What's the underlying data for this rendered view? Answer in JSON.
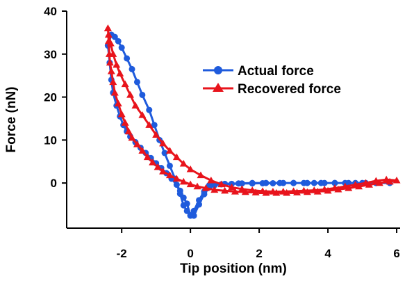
{
  "chart_data": {
    "type": "line",
    "title": "",
    "xlabel": "Tip position (nm)",
    "ylabel": "Force (nN)",
    "xlim": [
      -3.6,
      6.1
    ],
    "ylim": [
      -10.5,
      40
    ],
    "x_ticks": [
      -2,
      0,
      2,
      4,
      6
    ],
    "y_ticks": [
      0,
      10,
      20,
      30,
      40
    ],
    "x_tick_labels": [
      "-2",
      "0",
      "2",
      "4",
      "6"
    ],
    "y_tick_labels": [
      "0",
      "10",
      "20",
      "30",
      "40"
    ],
    "legend_position": "upper-right",
    "series": [
      {
        "name": "Actual force",
        "color": "#1f5bdc",
        "marker": "circle",
        "points": [
          [
            -2.4,
            32.0
          ],
          [
            -2.35,
            28.0
          ],
          [
            -2.3,
            24.0
          ],
          [
            -2.25,
            21.0
          ],
          [
            -2.15,
            18.0
          ],
          [
            -2.05,
            15.5
          ],
          [
            -1.95,
            13.5
          ],
          [
            -1.85,
            12.0
          ],
          [
            -1.75,
            10.8
          ],
          [
            -1.6,
            9.5
          ],
          [
            -1.45,
            8.2
          ],
          [
            -1.3,
            7.0
          ],
          [
            -1.15,
            5.8
          ],
          [
            -1.0,
            4.6
          ],
          [
            -0.85,
            3.5
          ],
          [
            -0.7,
            2.3
          ],
          [
            -0.55,
            1.0
          ],
          [
            -0.4,
            -0.4
          ],
          [
            -0.3,
            -1.8
          ],
          [
            -0.2,
            -3.4
          ],
          [
            -0.1,
            -4.8
          ],
          [
            0.0,
            -7.5
          ],
          [
            0.1,
            -7.6
          ],
          [
            0.25,
            -5.0
          ],
          [
            0.4,
            -2.6
          ],
          [
            0.55,
            -1.0
          ],
          [
            0.7,
            -0.5
          ],
          [
            0.9,
            -0.3
          ],
          [
            1.2,
            -0.2
          ],
          [
            1.5,
            -0.1
          ],
          [
            1.8,
            -0.1
          ],
          [
            2.1,
            -0.05
          ],
          [
            2.4,
            -0.05
          ],
          [
            2.7,
            0.0
          ],
          [
            3.0,
            0.0
          ],
          [
            3.3,
            0.0
          ],
          [
            3.6,
            0.0
          ],
          [
            3.9,
            0.0
          ],
          [
            4.2,
            0.0
          ],
          [
            4.5,
            0.0
          ],
          [
            4.8,
            0.0
          ],
          [
            5.1,
            0.0
          ],
          [
            5.4,
            0.0
          ],
          [
            5.8,
            0.0
          ],
          [
            5.4,
            0.0
          ],
          [
            5.0,
            0.0
          ],
          [
            4.6,
            0.0
          ],
          [
            4.2,
            0.0
          ],
          [
            3.8,
            0.0
          ],
          [
            3.4,
            0.0
          ],
          [
            3.0,
            0.0
          ],
          [
            2.6,
            0.0
          ],
          [
            2.2,
            0.0
          ],
          [
            1.8,
            0.0
          ],
          [
            1.4,
            -0.1
          ],
          [
            1.0,
            -0.2
          ],
          [
            0.7,
            -0.3
          ],
          [
            0.55,
            -0.5
          ],
          [
            0.4,
            -2.0
          ],
          [
            0.25,
            -4.0
          ],
          [
            0.1,
            -6.5
          ],
          [
            0.0,
            -7.6
          ],
          [
            -0.1,
            -6.5
          ],
          [
            -0.2,
            -5.2
          ],
          [
            -0.3,
            -2.5
          ],
          [
            -0.45,
            1.0
          ],
          [
            -0.6,
            4.0
          ],
          [
            -0.75,
            7.0
          ],
          [
            -0.9,
            10.0
          ],
          [
            -1.05,
            13.5
          ],
          [
            -1.2,
            17.0
          ],
          [
            -1.4,
            20.5
          ],
          [
            -1.55,
            23.5
          ],
          [
            -1.7,
            26.5
          ],
          [
            -1.85,
            29.0
          ],
          [
            -2.0,
            31.5
          ],
          [
            -2.1,
            33.0
          ],
          [
            -2.2,
            34.0
          ],
          [
            -2.3,
            34.5
          ],
          [
            -2.4,
            32.0
          ]
        ]
      },
      {
        "name": "Recovered force",
        "color": "#e8141c",
        "marker": "triangle",
        "points": [
          [
            -2.4,
            36.0
          ],
          [
            -2.38,
            33.0
          ],
          [
            -2.36,
            30.0
          ],
          [
            -2.34,
            28.0
          ],
          [
            -2.3,
            26.0
          ],
          [
            -2.25,
            23.5
          ],
          [
            -2.2,
            21.0
          ],
          [
            -2.1,
            18.5
          ],
          [
            -2.0,
            16.0
          ],
          [
            -1.9,
            14.0
          ],
          [
            -1.8,
            12.0
          ],
          [
            -1.7,
            10.5
          ],
          [
            -1.55,
            9.0
          ],
          [
            -1.4,
            7.5
          ],
          [
            -1.25,
            6.0
          ],
          [
            -1.1,
            4.8
          ],
          [
            -0.95,
            3.7
          ],
          [
            -0.8,
            2.7
          ],
          [
            -0.6,
            1.8
          ],
          [
            -0.4,
            1.0
          ],
          [
            -0.2,
            0.3
          ],
          [
            0.0,
            -0.3
          ],
          [
            0.2,
            -0.8
          ],
          [
            0.45,
            -1.2
          ],
          [
            0.7,
            -1.6
          ],
          [
            1.0,
            -1.8
          ],
          [
            1.3,
            -2.0
          ],
          [
            1.6,
            -2.1
          ],
          [
            1.9,
            -2.2
          ],
          [
            2.2,
            -2.3
          ],
          [
            2.5,
            -2.3
          ],
          [
            2.8,
            -2.3
          ],
          [
            3.1,
            -2.2
          ],
          [
            3.4,
            -2.1
          ],
          [
            3.7,
            -2.0
          ],
          [
            4.0,
            -1.8
          ],
          [
            4.3,
            -1.5
          ],
          [
            4.6,
            -1.2
          ],
          [
            4.9,
            -0.8
          ],
          [
            5.2,
            -0.4
          ],
          [
            5.5,
            0.0
          ],
          [
            5.8,
            0.3
          ],
          [
            6.0,
            0.6
          ],
          [
            5.7,
            0.8
          ],
          [
            5.4,
            0.5
          ],
          [
            5.1,
            0.0
          ],
          [
            4.8,
            -0.4
          ],
          [
            4.5,
            -0.8
          ],
          [
            4.2,
            -1.2
          ],
          [
            3.9,
            -1.5
          ],
          [
            3.6,
            -1.7
          ],
          [
            3.3,
            -1.8
          ],
          [
            3.0,
            -1.9
          ],
          [
            2.7,
            -2.0
          ],
          [
            2.4,
            -2.0
          ],
          [
            2.1,
            -1.9
          ],
          [
            1.8,
            -1.7
          ],
          [
            1.5,
            -1.4
          ],
          [
            1.2,
            -1.0
          ],
          [
            0.9,
            -0.3
          ],
          [
            0.6,
            0.6
          ],
          [
            0.3,
            1.8
          ],
          [
            0.0,
            3.2
          ],
          [
            -0.2,
            4.5
          ],
          [
            -0.4,
            6.0
          ],
          [
            -0.6,
            7.5
          ],
          [
            -0.8,
            9.2
          ],
          [
            -1.0,
            11.2
          ],
          [
            -1.2,
            13.5
          ],
          [
            -1.4,
            15.8
          ],
          [
            -1.6,
            18.0
          ],
          [
            -1.75,
            20.5
          ],
          [
            -1.9,
            23.0
          ],
          [
            -2.05,
            25.5
          ],
          [
            -2.15,
            27.5
          ],
          [
            -2.25,
            30.0
          ],
          [
            -2.32,
            32.5
          ],
          [
            -2.38,
            34.5
          ],
          [
            -2.4,
            36.0
          ]
        ]
      }
    ]
  }
}
